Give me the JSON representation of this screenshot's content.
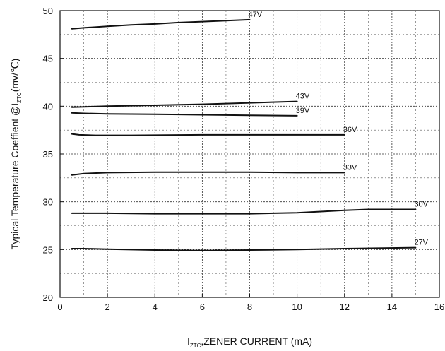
{
  "chart_data": {
    "type": "line",
    "title": "",
    "xlabel": {
      "symbol": "I",
      "subscript": "ZTC",
      "text": ",ZENER CURRENT (mA)"
    },
    "ylabel": {
      "text": "Typical Temperature Coeffient @I",
      "subscript": "ZTC",
      "unit": "(mv/℃)"
    },
    "xlim": [
      0,
      16
    ],
    "ylim": [
      20,
      50
    ],
    "x_ticks": [
      0,
      2,
      4,
      6,
      8,
      10,
      12,
      14,
      16
    ],
    "y_ticks": [
      20,
      25,
      30,
      35,
      40,
      45,
      50
    ],
    "x_tick_labels": [
      "0",
      "2",
      "4",
      "6",
      "8",
      "10",
      "12",
      "14",
      "16"
    ],
    "y_tick_labels": [
      "20",
      "25",
      "30",
      "35",
      "40",
      "45",
      "50"
    ],
    "grid": true,
    "series": [
      {
        "name": "47V",
        "points": [
          [
            0.5,
            48.1
          ],
          [
            1,
            48.2
          ],
          [
            2,
            48.35
          ],
          [
            3,
            48.5
          ],
          [
            4,
            48.6
          ],
          [
            5,
            48.75
          ],
          [
            6,
            48.85
          ],
          [
            7,
            48.95
          ],
          [
            8,
            49.05
          ]
        ]
      },
      {
        "name": "43V",
        "points": [
          [
            0.5,
            39.9
          ],
          [
            2,
            40.0
          ],
          [
            4,
            40.1
          ],
          [
            6,
            40.2
          ],
          [
            8,
            40.35
          ],
          [
            10,
            40.5
          ]
        ]
      },
      {
        "name": "39V",
        "points": [
          [
            0.5,
            39.3
          ],
          [
            1,
            39.25
          ],
          [
            2,
            39.2
          ],
          [
            4,
            39.15
          ],
          [
            6,
            39.1
          ],
          [
            8,
            39.05
          ],
          [
            10,
            39.0
          ]
        ]
      },
      {
        "name": "36V",
        "points": [
          [
            0.5,
            37.1
          ],
          [
            0.8,
            37.0
          ],
          [
            1.5,
            36.95
          ],
          [
            3,
            36.95
          ],
          [
            6,
            37.0
          ],
          [
            9,
            37.0
          ],
          [
            12,
            37.0
          ]
        ]
      },
      {
        "name": "33V",
        "points": [
          [
            0.5,
            32.8
          ],
          [
            1,
            32.95
          ],
          [
            2,
            33.05
          ],
          [
            4,
            33.1
          ],
          [
            6,
            33.1
          ],
          [
            8,
            33.1
          ],
          [
            10,
            33.05
          ],
          [
            12,
            33.05
          ]
        ]
      },
      {
        "name": "30V",
        "points": [
          [
            0.5,
            28.8
          ],
          [
            2,
            28.8
          ],
          [
            4,
            28.75
          ],
          [
            6,
            28.75
          ],
          [
            8,
            28.75
          ],
          [
            10,
            28.85
          ],
          [
            12,
            29.1
          ],
          [
            13,
            29.2
          ],
          [
            15,
            29.2
          ]
        ]
      },
      {
        "name": "27V",
        "points": [
          [
            0.5,
            25.1
          ],
          [
            1,
            25.1
          ],
          [
            2,
            25.05
          ],
          [
            4,
            24.95
          ],
          [
            6,
            24.9
          ],
          [
            8,
            24.95
          ],
          [
            10,
            25.0
          ],
          [
            12,
            25.1
          ],
          [
            15,
            25.2
          ]
        ]
      }
    ]
  }
}
